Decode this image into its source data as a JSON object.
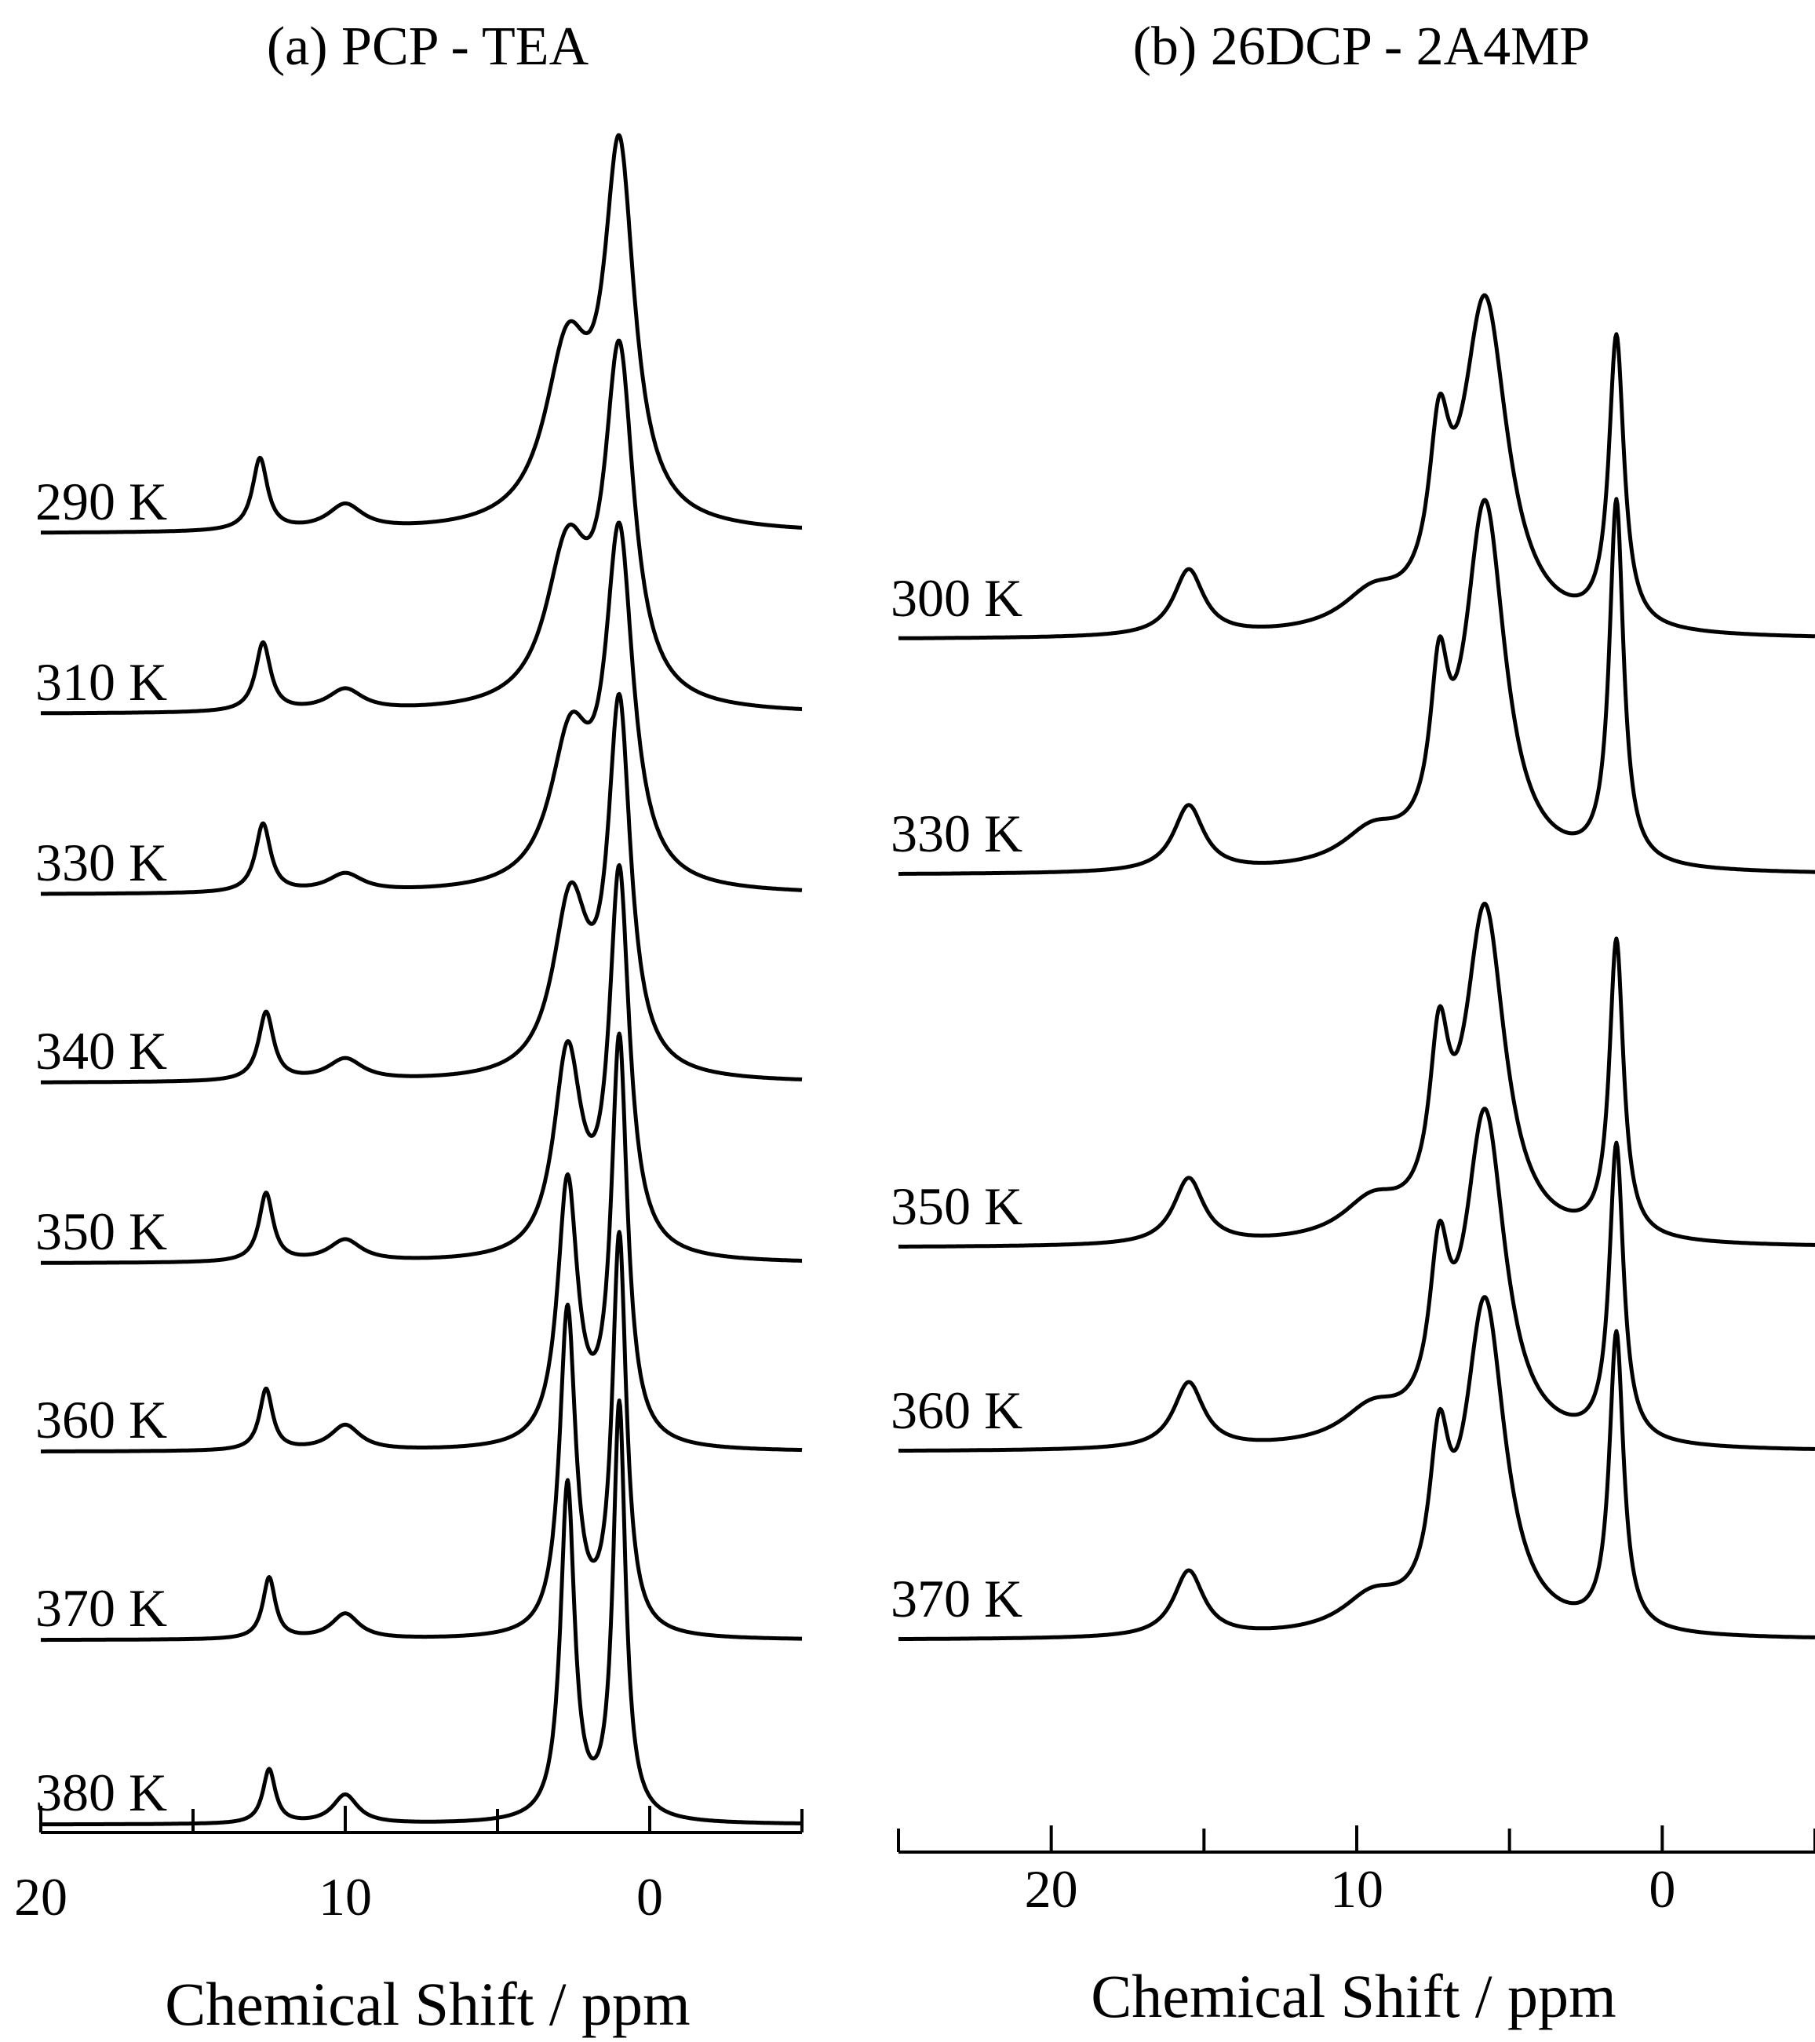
{
  "chart_data": [
    {
      "type": "line",
      "title": "(a) PCP - TEA",
      "xlabel": "Chemical Shift / ppm",
      "xlim": [
        20,
        -5
      ],
      "xticks": [
        20,
        10,
        0
      ],
      "x_reversed": true,
      "series": [
        {
          "name": "290 K",
          "peaks": [
            {
              "x": 12.8,
              "h": 0.2,
              "w": 0.3
            },
            {
              "x": 10.0,
              "h": 0.07,
              "w": 0.7
            },
            {
              "x": 2.7,
              "h": 0.47,
              "w": 0.9
            },
            {
              "x": 1.0,
              "h": 1.0,
              "w": 0.6
            }
          ]
        },
        {
          "name": "310 K",
          "peaks": [
            {
              "x": 12.7,
              "h": 0.19,
              "w": 0.3
            },
            {
              "x": 10.0,
              "h": 0.06,
              "w": 0.7
            },
            {
              "x": 2.7,
              "h": 0.42,
              "w": 0.85
            },
            {
              "x": 1.0,
              "h": 0.95,
              "w": 0.58
            }
          ]
        },
        {
          "name": "330 K",
          "peaks": [
            {
              "x": 12.7,
              "h": 0.19,
              "w": 0.3
            },
            {
              "x": 10.0,
              "h": 0.05,
              "w": 0.7
            },
            {
              "x": 2.6,
              "h": 0.4,
              "w": 0.8
            },
            {
              "x": 1.0,
              "h": 0.95,
              "w": 0.55
            }
          ]
        },
        {
          "name": "340 K",
          "peaks": [
            {
              "x": 12.6,
              "h": 0.19,
              "w": 0.3
            },
            {
              "x": 10.0,
              "h": 0.06,
              "w": 0.7
            },
            {
              "x": 2.6,
              "h": 0.48,
              "w": 0.7
            },
            {
              "x": 1.0,
              "h": 1.0,
              "w": 0.45
            }
          ]
        },
        {
          "name": "350 K",
          "peaks": [
            {
              "x": 12.6,
              "h": 0.19,
              "w": 0.28
            },
            {
              "x": 10.0,
              "h": 0.06,
              "w": 0.65
            },
            {
              "x": 2.7,
              "h": 0.56,
              "w": 0.55
            },
            {
              "x": 1.0,
              "h": 1.05,
              "w": 0.4
            }
          ]
        },
        {
          "name": "360 K",
          "peaks": [
            {
              "x": 12.6,
              "h": 0.17,
              "w": 0.26
            },
            {
              "x": 10.0,
              "h": 0.07,
              "w": 0.6
            },
            {
              "x": 2.7,
              "h": 0.73,
              "w": 0.4
            },
            {
              "x": 1.0,
              "h": 1.12,
              "w": 0.32
            }
          ]
        },
        {
          "name": "370 K",
          "peaks": [
            {
              "x": 12.5,
              "h": 0.17,
              "w": 0.25
            },
            {
              "x": 10.0,
              "h": 0.07,
              "w": 0.55
            },
            {
              "x": 2.7,
              "h": 0.9,
              "w": 0.32
            },
            {
              "x": 1.0,
              "h": 1.1,
              "w": 0.28
            }
          ]
        },
        {
          "name": "380 K",
          "peaks": [
            {
              "x": 12.5,
              "h": 0.15,
              "w": 0.25
            },
            {
              "x": 10.0,
              "h": 0.08,
              "w": 0.5
            },
            {
              "x": 2.7,
              "h": 0.93,
              "w": 0.28
            },
            {
              "x": 1.0,
              "h": 1.15,
              "w": 0.25
            }
          ]
        }
      ]
    },
    {
      "type": "line",
      "title": "(b) 26DCP - 2A4MP",
      "xlabel": "Chemical Shift / ppm",
      "xlim": [
        25,
        -5
      ],
      "xticks": [
        20,
        10,
        0
      ],
      "x_reversed": true,
      "series": [
        {
          "name": "300 K",
          "peaks": [
            {
              "x": 15.5,
              "h": 0.2,
              "w": 0.6
            },
            {
              "x": 9.5,
              "h": 0.1,
              "w": 1.2
            },
            {
              "x": 7.3,
              "h": 0.45,
              "w": 0.4
            },
            {
              "x": 5.8,
              "h": 1.0,
              "w": 0.9
            },
            {
              "x": 1.5,
              "h": 0.88,
              "w": 0.3
            }
          ]
        },
        {
          "name": "330 K",
          "peaks": [
            {
              "x": 15.5,
              "h": 0.2,
              "w": 0.6
            },
            {
              "x": 9.5,
              "h": 0.1,
              "w": 1.2
            },
            {
              "x": 7.3,
              "h": 0.45,
              "w": 0.35
            },
            {
              "x": 5.8,
              "h": 1.1,
              "w": 0.8
            },
            {
              "x": 1.5,
              "h": 1.1,
              "w": 0.28
            }
          ]
        },
        {
          "name": "350 K",
          "peaks": [
            {
              "x": 15.5,
              "h": 0.2,
              "w": 0.6
            },
            {
              "x": 9.5,
              "h": 0.11,
              "w": 1.2
            },
            {
              "x": 7.3,
              "h": 0.48,
              "w": 0.38
            },
            {
              "x": 5.8,
              "h": 1.0,
              "w": 0.8
            },
            {
              "x": 1.5,
              "h": 0.9,
              "w": 0.28
            }
          ]
        },
        {
          "name": "360 K",
          "peaks": [
            {
              "x": 15.5,
              "h": 0.2,
              "w": 0.6
            },
            {
              "x": 9.5,
              "h": 0.1,
              "w": 1.2
            },
            {
              "x": 7.3,
              "h": 0.45,
              "w": 0.38
            },
            {
              "x": 5.8,
              "h": 1.0,
              "w": 0.8
            },
            {
              "x": 1.5,
              "h": 0.9,
              "w": 0.28
            }
          ]
        },
        {
          "name": "370 K",
          "peaks": [
            {
              "x": 15.5,
              "h": 0.2,
              "w": 0.6
            },
            {
              "x": 9.5,
              "h": 0.1,
              "w": 1.2
            },
            {
              "x": 7.3,
              "h": 0.45,
              "w": 0.38
            },
            {
              "x": 5.8,
              "h": 1.0,
              "w": 0.8
            },
            {
              "x": 1.5,
              "h": 0.9,
              "w": 0.28
            }
          ]
        }
      ]
    }
  ]
}
